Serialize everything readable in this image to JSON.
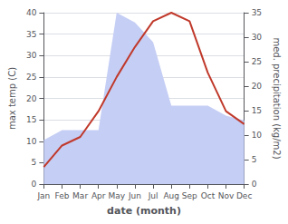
{
  "chart_data": {
    "type": "line",
    "xlabel": "date (month)",
    "ylabel": "max temp (C)",
    "y2label": "med. precipitation (kg/m2)",
    "categories": [
      "Jan",
      "Feb",
      "Mar",
      "Apr",
      "May",
      "Jun",
      "Jul",
      "Aug",
      "Sep",
      "Oct",
      "Nov",
      "Dec"
    ],
    "series": [
      {
        "type": "area",
        "axis": "y2",
        "color": "#c5cef5",
        "values": [
          9,
          11,
          11,
          11,
          35,
          33,
          29,
          16,
          16,
          16,
          14,
          13
        ]
      },
      {
        "type": "line",
        "color": "#c0392b",
        "values": [
          4,
          9,
          11,
          17,
          25,
          32,
          38,
          40,
          38,
          26,
          17,
          14
        ]
      }
    ],
    "ylim": [
      0,
      40
    ],
    "yticks": [
      0,
      5,
      10,
      15,
      20,
      25,
      30,
      35,
      40
    ],
    "y2lim": [
      0,
      35
    ],
    "y2ticks": [
      0,
      5,
      10,
      15,
      20,
      25,
      30,
      35
    ],
    "grid": true
  }
}
